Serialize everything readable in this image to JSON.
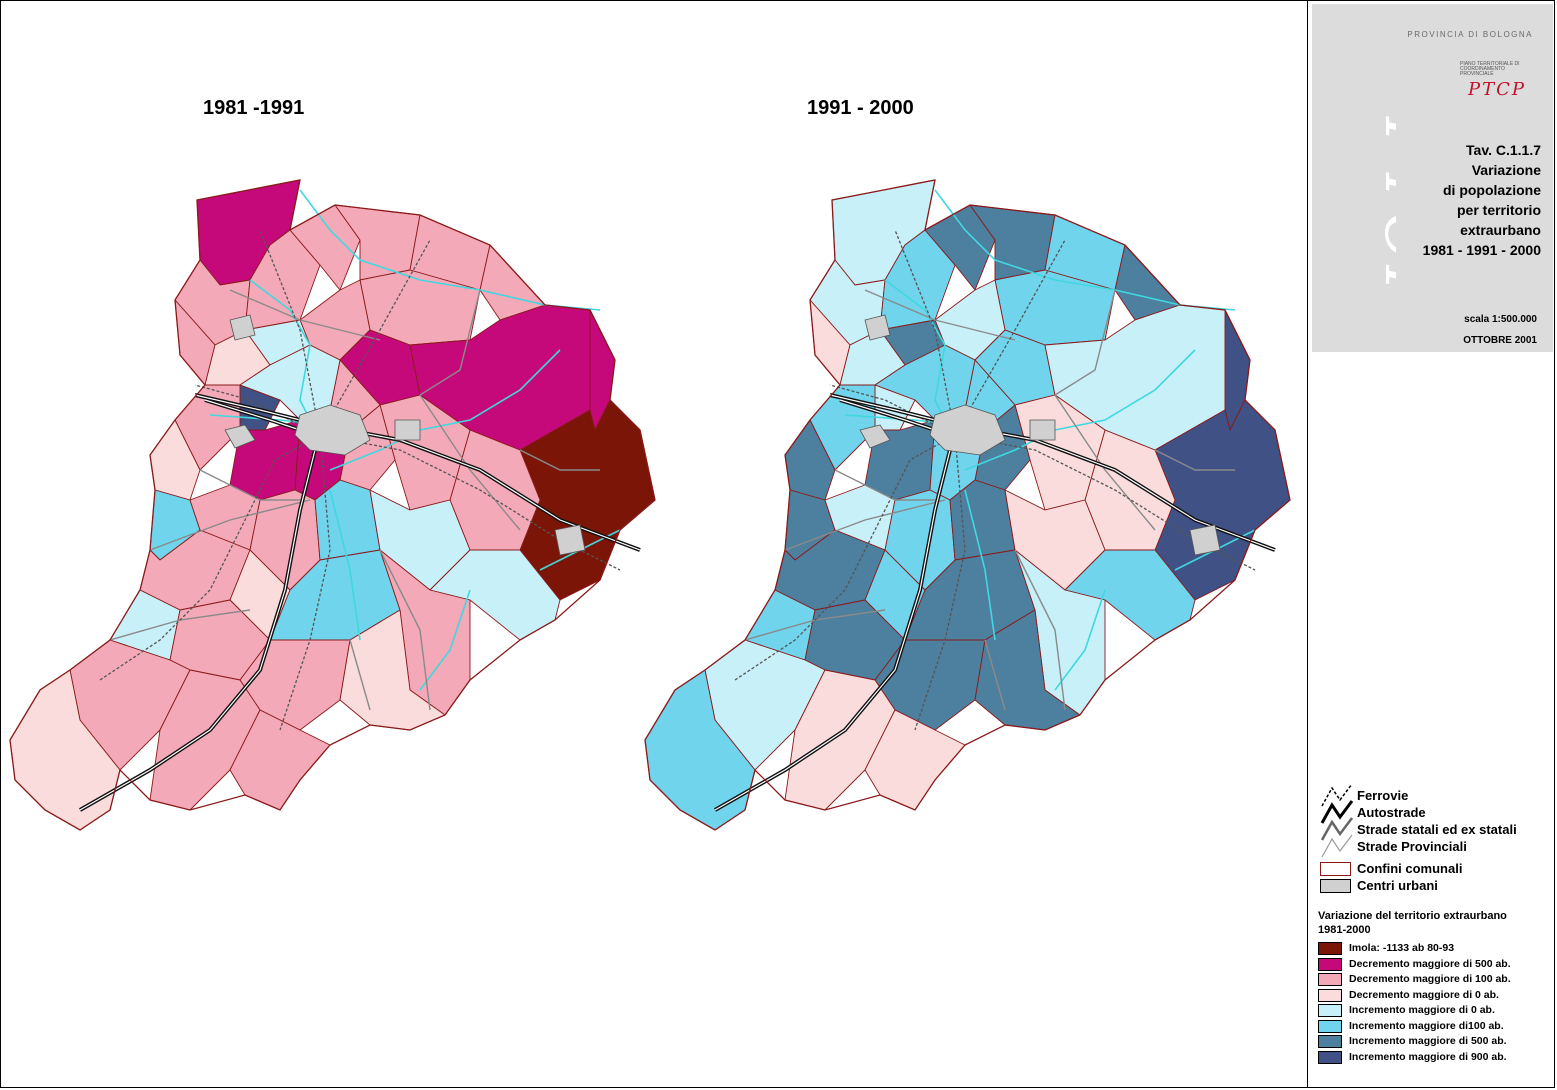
{
  "maps": {
    "left_title": "1981 -1991",
    "right_title": "1991 - 2000"
  },
  "title_block": {
    "province": "PROVINCIA DI BOLOGNA",
    "ptcp_caption": "PIANO TERRITORIALE DI COORDINAMENTO PROVINCIALE",
    "ptcp_logo": "PTCP",
    "tav_lines": [
      "Tav. C.1.1.7",
      "Variazione",
      "di popolazione",
      "per territorio",
      "extraurbano",
      "1981 - 1991 - 2000"
    ],
    "scale": "scala 1:500.000",
    "date": "OTTOBRE 2001"
  },
  "legend": {
    "lines": [
      "Ferrovie",
      "Autostrade",
      "Strade statali ed ex statali",
      "Strade Provinciali"
    ],
    "boxes": [
      {
        "label": "Confini comunali",
        "color": "#ffffff"
      },
      {
        "label": "Centri urbani",
        "color": "#d0d0d0"
      }
    ],
    "variation_title": "Variazione del territorio extraurbano",
    "variation_period": "1981-2000",
    "classes": [
      {
        "label": "Imola: -1133 ab 80-93",
        "color": "#7a1508"
      },
      {
        "label": "Decremento maggiore di 500 ab.",
        "color": "#c6097a"
      },
      {
        "label": "Decremento maggiore di 100 ab.",
        "color": "#f4a9b8"
      },
      {
        "label": "Decremento maggiore di 0 ab.",
        "color": "#fadcdc"
      },
      {
        "label": "Incremento maggiore di 0 ab.",
        "color": "#c8f0f8"
      },
      {
        "label": "Incremento maggiore di100 ab.",
        "color": "#6fd4ec"
      },
      {
        "label": "Incremento maggiore di 500 ab.",
        "color": "#4d7f9e"
      },
      {
        "label": "Incremento maggiore di 900 ab.",
        "color": "#3f5185"
      }
    ]
  },
  "colors": {
    "boundary": "#8a1a1a",
    "roads": "#8a8a8a",
    "rivers": "#40d8e0",
    "urban": "#d0d0d0"
  }
}
